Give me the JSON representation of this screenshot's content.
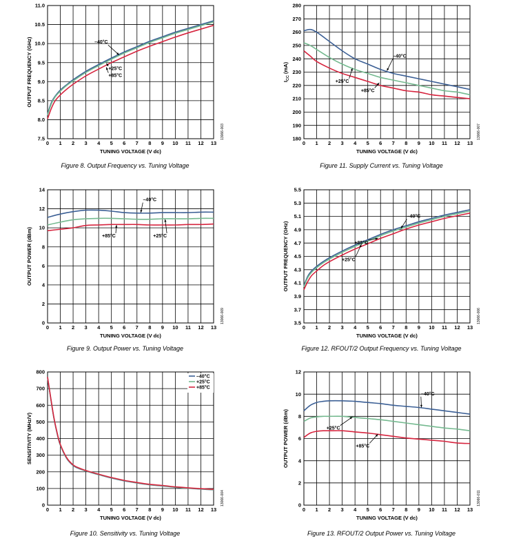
{
  "colors": {
    "m40": "#3b5f95",
    "p25": "#74b98f",
    "p85": "#d6243e",
    "grid": "#000000"
  },
  "chart_data": [
    {
      "id": "fig8",
      "type": "line",
      "caption": "Figure 8. Output Frequency vs. Tuning Voltage",
      "code": "13066-003",
      "xlabel": "TUNING VOLTAGE (V dc)",
      "ylabel": "OUTPUT FREQUENCY (GHz)",
      "xlim": [
        0,
        13
      ],
      "ylim": [
        7.5,
        11.0
      ],
      "xticks": [
        0,
        1,
        2,
        3,
        4,
        5,
        6,
        7,
        8,
        9,
        10,
        11,
        12,
        13
      ],
      "yticks": [
        7.5,
        8.0,
        8.5,
        9.0,
        9.5,
        10.0,
        10.5,
        11.0
      ],
      "ytick_labels": [
        "7.5",
        "8.0",
        "8.5",
        "9.0",
        "9.5",
        "10.0",
        "10.5",
        "11.0"
      ],
      "grid": true,
      "series": [
        {
          "name": "–40°C",
          "color_key": "m40",
          "x": [
            0,
            0.3,
            0.6,
            1,
            1.5,
            2,
            3,
            4,
            5,
            6,
            7,
            8,
            9,
            10,
            11,
            12,
            13
          ],
          "y": [
            8.15,
            8.45,
            8.62,
            8.78,
            8.92,
            9.05,
            9.27,
            9.45,
            9.62,
            9.78,
            9.92,
            10.06,
            10.18,
            10.3,
            10.4,
            10.5,
            10.6
          ]
        },
        {
          "name": "+25°C",
          "color_key": "p25",
          "x": [
            0,
            0.3,
            0.6,
            1,
            1.5,
            2,
            3,
            4,
            5,
            6,
            7,
            8,
            9,
            10,
            11,
            12,
            13
          ],
          "y": [
            8.12,
            8.42,
            8.6,
            8.75,
            8.9,
            9.02,
            9.24,
            9.42,
            9.59,
            9.75,
            9.89,
            10.03,
            10.15,
            10.27,
            10.37,
            10.47,
            10.57
          ]
        },
        {
          "name": "+85°C",
          "color_key": "p85",
          "x": [
            0,
            0.3,
            0.6,
            1,
            1.5,
            2,
            3,
            4,
            5,
            6,
            7,
            8,
            9,
            10,
            11,
            12,
            13
          ],
          "y": [
            8.02,
            8.3,
            8.5,
            8.65,
            8.8,
            8.93,
            9.15,
            9.33,
            9.5,
            9.65,
            9.8,
            9.93,
            10.05,
            10.17,
            10.28,
            10.38,
            10.48
          ]
        }
      ],
      "annotations": [
        {
          "text": "–40°C",
          "lx": 4.2,
          "ly": 10.0,
          "ax": 5.6,
          "ay": 9.7
        },
        {
          "text": "+25°C",
          "lx": 5.3,
          "ly": 9.3,
          "ax": 4.6,
          "ay": 9.48
        },
        {
          "text": "+85°C",
          "lx": 5.3,
          "ly": 9.12,
          "ax": 4.6,
          "ay": 9.38
        }
      ]
    },
    {
      "id": "fig11",
      "type": "line",
      "caption": "Figure 11. Supply Current vs. Tuning Voltage",
      "code": "13066-007",
      "xlabel": "TUNING VOLTAGE (V dc)",
      "ylabel": "I",
      "ylabel_sub": "CC",
      "ylabel_unit": " (mA)",
      "xlim": [
        0,
        13
      ],
      "ylim": [
        180,
        280
      ],
      "xticks": [
        0,
        1,
        2,
        3,
        4,
        5,
        6,
        7,
        8,
        9,
        10,
        11,
        12,
        13
      ],
      "yticks": [
        180,
        190,
        200,
        210,
        220,
        230,
        240,
        250,
        260,
        270,
        280
      ],
      "ytick_labels": [
        "180",
        "190",
        "200",
        "210",
        "220",
        "230",
        "240",
        "250",
        "260",
        "270",
        "280"
      ],
      "grid": true,
      "series": [
        {
          "name": "–40°C",
          "color_key": "m40",
          "x": [
            0,
            0.5,
            1,
            2,
            3,
            4,
            5,
            6,
            7,
            8,
            9,
            10,
            11,
            12,
            13
          ],
          "y": [
            261,
            262,
            260,
            253,
            246,
            240,
            236,
            232,
            229,
            227,
            225,
            223,
            221,
            219,
            217
          ]
        },
        {
          "name": "+25°C",
          "color_key": "p25",
          "x": [
            0,
            0.5,
            1,
            2,
            3,
            4,
            5,
            6,
            7,
            8,
            9,
            10,
            11,
            12,
            13
          ],
          "y": [
            252,
            250,
            247,
            241,
            236,
            232,
            229,
            226,
            224,
            222,
            220,
            218,
            216,
            215,
            213
          ]
        },
        {
          "name": "+85°C",
          "color_key": "p85",
          "x": [
            0,
            0.5,
            1,
            2,
            3,
            4,
            5,
            6,
            7,
            8,
            9,
            10,
            11,
            12,
            13
          ],
          "y": [
            246,
            242,
            238,
            233,
            229,
            226,
            223,
            220,
            218,
            216,
            215,
            213,
            212,
            211,
            210
          ]
        }
      ],
      "annotations": [
        {
          "text": "–40°C",
          "lx": 7.5,
          "ly": 241,
          "ax": 6.5,
          "ay": 231
        },
        {
          "text": "+25°C",
          "lx": 3.0,
          "ly": 222,
          "ax": 3.8,
          "ay": 233
        },
        {
          "text": "+85°C",
          "lx": 5.0,
          "ly": 215,
          "ax": 5.9,
          "ay": 222
        }
      ]
    },
    {
      "id": "fig9",
      "type": "line",
      "caption": "Figure 9. Output Power vs. Tuning Voltage",
      "code": "13066-009",
      "xlabel": "TUNING VOLTAGE (V dc)",
      "ylabel": "OUTPUT POWER (dBm)",
      "xlim": [
        0,
        13
      ],
      "ylim": [
        0,
        14
      ],
      "xticks": [
        0,
        1,
        2,
        3,
        4,
        5,
        6,
        7,
        8,
        9,
        10,
        11,
        12,
        13
      ],
      "yticks": [
        0,
        2,
        4,
        6,
        8,
        10,
        12,
        14
      ],
      "ytick_labels": [
        "0",
        "2",
        "4",
        "6",
        "8",
        "10",
        "12",
        "14"
      ],
      "grid": true,
      "series": [
        {
          "name": "–40°C",
          "color_key": "m40",
          "x": [
            0,
            1,
            2,
            3,
            4,
            5,
            6,
            7,
            8,
            9,
            10,
            11,
            12,
            13
          ],
          "y": [
            11.1,
            11.45,
            11.7,
            11.85,
            11.85,
            11.75,
            11.6,
            11.55,
            11.55,
            11.6,
            11.6,
            11.6,
            11.65,
            11.65
          ]
        },
        {
          "name": "+25°C",
          "color_key": "p25",
          "x": [
            0,
            1,
            2,
            3,
            4,
            5,
            6,
            7,
            8,
            9,
            10,
            11,
            12,
            13
          ],
          "y": [
            10.3,
            10.6,
            10.85,
            10.95,
            11.0,
            11.0,
            10.95,
            10.9,
            10.9,
            10.95,
            10.95,
            10.95,
            11.0,
            11.0
          ]
        },
        {
          "name": "+85°C",
          "color_key": "p85",
          "x": [
            0,
            1,
            2,
            3,
            4,
            5,
            6,
            7,
            8,
            9,
            10,
            11,
            12,
            13
          ],
          "y": [
            9.7,
            9.85,
            10.0,
            10.25,
            10.3,
            10.35,
            10.35,
            10.35,
            10.3,
            10.3,
            10.3,
            10.35,
            10.35,
            10.4
          ]
        }
      ],
      "annotations": [
        {
          "text": "–40°C",
          "lx": 8.0,
          "ly": 12.8,
          "ax": 7.3,
          "ay": 11.6
        },
        {
          "text": "+85°C",
          "lx": 4.8,
          "ly": 9.0,
          "ax": 5.4,
          "ay": 10.3
        },
        {
          "text": "+25°C",
          "lx": 8.8,
          "ly": 9.0,
          "ax": 9.2,
          "ay": 10.9
        }
      ]
    },
    {
      "id": "fig12",
      "type": "line",
      "caption": "Figure 12. RFOUT/2 Output Frequency vs. Tuning Voltage",
      "code": "13066-006",
      "xlabel": "TUNING VOLTAGE (V dc)",
      "ylabel": "OUTPUT FREQUENCY (GHz)",
      "xlim": [
        0,
        13
      ],
      "ylim": [
        3.5,
        5.5
      ],
      "xticks": [
        0,
        1,
        2,
        3,
        4,
        5,
        6,
        7,
        8,
        9,
        10,
        11,
        12,
        13
      ],
      "yticks": [
        3.5,
        3.7,
        3.9,
        4.1,
        4.3,
        4.5,
        4.7,
        4.9,
        5.1,
        5.3,
        5.5
      ],
      "ytick_labels": [
        "3.5",
        "3.7",
        "3.9",
        "4.1",
        "4.3",
        "4.5",
        "4.7",
        "4.9",
        "5.1",
        "5.3",
        "5.5"
      ],
      "grid": true,
      "series": [
        {
          "name": "–40°C",
          "color_key": "m40",
          "x": [
            0,
            0.3,
            0.6,
            1,
            1.5,
            2,
            3,
            4,
            5,
            6,
            7,
            8,
            9,
            10,
            11,
            12,
            13
          ],
          "y": [
            4.06,
            4.2,
            4.28,
            4.35,
            4.42,
            4.48,
            4.58,
            4.67,
            4.75,
            4.83,
            4.9,
            4.96,
            5.02,
            5.07,
            5.12,
            5.16,
            5.2
          ]
        },
        {
          "name": "+25°C",
          "color_key": "p25",
          "x": [
            0,
            0.3,
            0.6,
            1,
            1.5,
            2,
            3,
            4,
            5,
            6,
            7,
            8,
            9,
            10,
            11,
            12,
            13
          ],
          "y": [
            4.04,
            4.18,
            4.26,
            4.33,
            4.4,
            4.46,
            4.56,
            4.65,
            4.73,
            4.81,
            4.88,
            4.94,
            5.0,
            5.05,
            5.1,
            5.14,
            5.18
          ]
        },
        {
          "name": "+85°C",
          "color_key": "p85",
          "x": [
            0,
            0.3,
            0.6,
            1,
            1.5,
            2,
            3,
            4,
            5,
            6,
            7,
            8,
            9,
            10,
            11,
            12,
            13
          ],
          "y": [
            4.0,
            4.12,
            4.21,
            4.28,
            4.36,
            4.42,
            4.52,
            4.61,
            4.69,
            4.77,
            4.84,
            4.91,
            4.97,
            5.02,
            5.07,
            5.11,
            5.15
          ]
        }
      ],
      "annotations": [
        {
          "text": "–40°C",
          "lx": 8.6,
          "ly": 5.08,
          "ax": 7.6,
          "ay": 4.92
        },
        {
          "text": "+85°C",
          "lx": 4.5,
          "ly": 4.68,
          "ax": 5.8,
          "ay": 4.77
        },
        {
          "text": "+25°C",
          "lx": 3.5,
          "ly": 4.43,
          "ax": 4.5,
          "ay": 4.68
        }
      ]
    },
    {
      "id": "fig10",
      "type": "line",
      "caption": "Figure 10. Sensitivity vs. Tuning Voltage",
      "code": "13066-004",
      "xlabel": "TUNING VOLTAGE (V dc)",
      "ylabel": "SENSITIVITY (MHz/V)",
      "xlim": [
        0,
        13
      ],
      "ylim": [
        0,
        800
      ],
      "xticks": [
        0,
        1,
        2,
        3,
        4,
        5,
        6,
        7,
        8,
        9,
        10,
        11,
        12,
        13
      ],
      "yticks": [
        0,
        100,
        200,
        300,
        400,
        500,
        600,
        700,
        800
      ],
      "ytick_labels": [
        "0",
        "100",
        "200",
        "300",
        "400",
        "500",
        "600",
        "700",
        "800"
      ],
      "grid": true,
      "legend": {
        "position": "top-right",
        "entries": [
          "–40°C",
          "+25°C",
          "+85°C"
        ]
      },
      "series": [
        {
          "name": "–40°C",
          "color_key": "m40",
          "x": [
            0,
            0.25,
            0.5,
            0.75,
            1,
            1.5,
            2,
            2.5,
            3,
            4,
            5,
            6,
            7,
            8,
            9,
            10,
            11,
            12,
            13
          ],
          "y": [
            765,
            640,
            520,
            430,
            360,
            280,
            238,
            218,
            205,
            183,
            163,
            146,
            133,
            122,
            115,
            107,
            101,
            96,
            92
          ]
        },
        {
          "name": "+25°C",
          "color_key": "p25",
          "x": [
            0,
            0.25,
            0.5,
            0.75,
            1,
            1.5,
            2,
            2.5,
            3,
            4,
            5,
            6,
            7,
            8,
            9,
            10,
            11,
            12,
            13
          ],
          "y": [
            768,
            642,
            522,
            432,
            362,
            282,
            240,
            220,
            206,
            184,
            164,
            147,
            134,
            123,
            116,
            108,
            102,
            97,
            93
          ]
        },
        {
          "name": "+85°C",
          "color_key": "p85",
          "x": [
            0,
            0.25,
            0.5,
            0.75,
            1,
            1.5,
            2,
            2.5,
            3,
            4,
            5,
            6,
            7,
            8,
            9,
            10,
            11,
            12,
            13
          ],
          "y": [
            770,
            645,
            525,
            435,
            365,
            285,
            242,
            222,
            208,
            186,
            166,
            149,
            136,
            125,
            118,
            110,
            104,
            99,
            95
          ]
        }
      ],
      "annotations": []
    },
    {
      "id": "fig13",
      "type": "line",
      "caption": "Figure 13. RFOUT/2 Output Power vs. Tuning Voltage",
      "code": "13066-011",
      "xlabel": "TUNING VOLTAGE (V dc)",
      "ylabel": "OUTPUT POWER (dBm)",
      "xlim": [
        0,
        13
      ],
      "ylim": [
        0,
        12
      ],
      "xticks": [
        0,
        1,
        2,
        3,
        4,
        5,
        6,
        7,
        8,
        9,
        10,
        11,
        12,
        13
      ],
      "yticks": [
        0,
        2,
        4,
        6,
        8,
        10,
        12
      ],
      "ytick_labels": [
        "0",
        "2",
        "4",
        "6",
        "8",
        "10",
        "12"
      ],
      "grid": true,
      "series": [
        {
          "name": "–40°C",
          "color_key": "m40",
          "x": [
            0,
            0.5,
            1,
            1.5,
            2,
            3,
            4,
            5,
            6,
            7,
            8,
            9,
            10,
            11,
            12,
            13
          ],
          "y": [
            8.5,
            9.0,
            9.25,
            9.35,
            9.4,
            9.4,
            9.35,
            9.25,
            9.15,
            9.0,
            8.9,
            8.8,
            8.65,
            8.5,
            8.35,
            8.2
          ]
        },
        {
          "name": "+25°C",
          "color_key": "p25",
          "x": [
            0,
            0.5,
            1,
            1.5,
            2,
            3,
            4,
            5,
            6,
            7,
            8,
            9,
            10,
            11,
            12,
            13
          ],
          "y": [
            7.55,
            7.85,
            7.95,
            8.0,
            8.0,
            8.0,
            7.9,
            7.8,
            7.7,
            7.55,
            7.4,
            7.25,
            7.1,
            6.95,
            6.85,
            6.7
          ]
        },
        {
          "name": "+85°C",
          "color_key": "p85",
          "x": [
            0,
            0.5,
            1,
            1.5,
            2,
            3,
            4,
            5,
            6,
            7,
            8,
            9,
            10,
            11,
            12,
            13
          ],
          "y": [
            6.1,
            6.5,
            6.65,
            6.7,
            6.7,
            6.7,
            6.6,
            6.5,
            6.35,
            6.2,
            6.05,
            5.95,
            5.85,
            5.75,
            5.6,
            5.55
          ]
        }
      ],
      "annotations": [
        {
          "text": "–40°C",
          "lx": 9.7,
          "ly": 9.9,
          "ax": 9.2,
          "ay": 8.8
        },
        {
          "text": "+25°C",
          "lx": 2.3,
          "ly": 6.8,
          "ax": 3.8,
          "ay": 7.95
        },
        {
          "text": "+85°C",
          "lx": 4.6,
          "ly": 5.2,
          "ax": 5.8,
          "ay": 6.4
        }
      ]
    }
  ]
}
